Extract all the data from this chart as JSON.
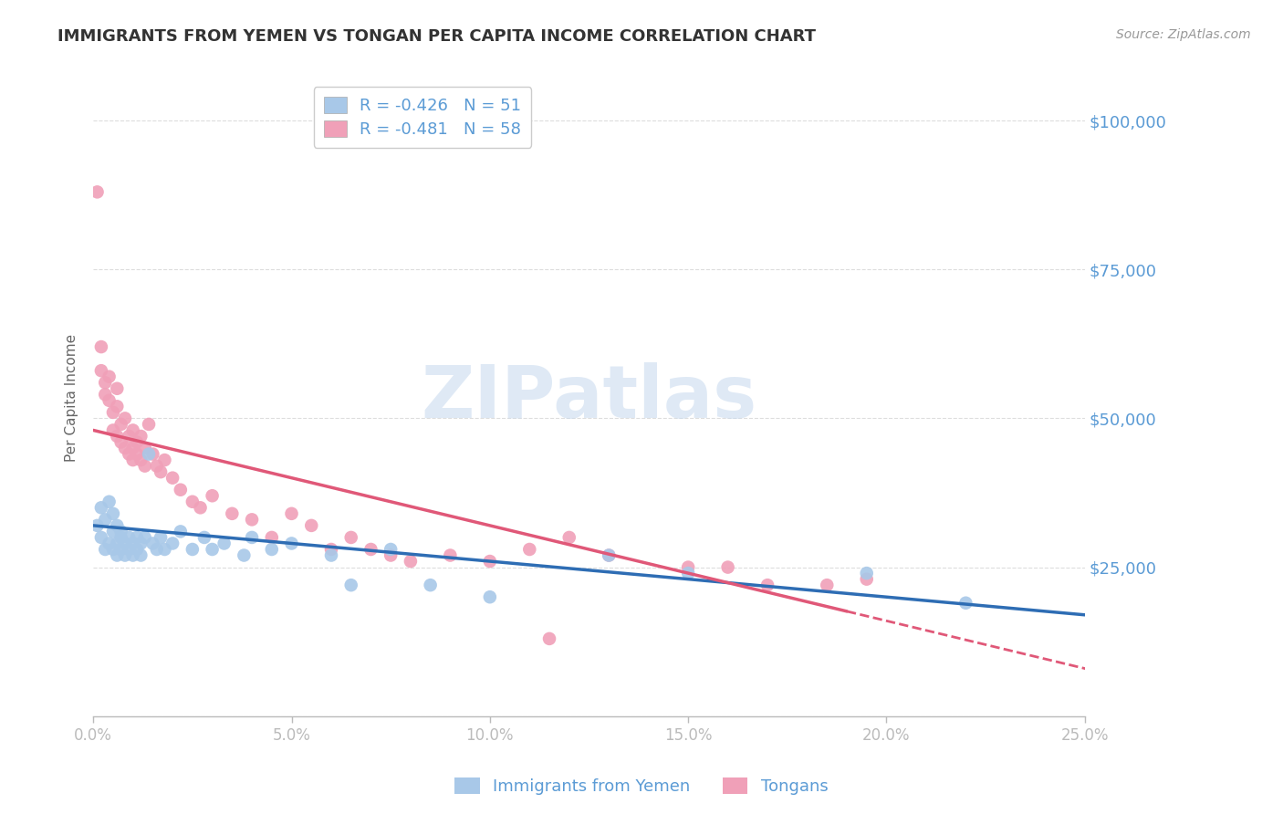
{
  "title": "IMMIGRANTS FROM YEMEN VS TONGAN PER CAPITA INCOME CORRELATION CHART",
  "source": "Source: ZipAtlas.com",
  "ylabel": "Per Capita Income",
  "legend_blue": {
    "R": -0.426,
    "N": 51,
    "label": "Immigrants from Yemen"
  },
  "legend_pink": {
    "R": -0.481,
    "N": 58,
    "label": "Tongans"
  },
  "watermark": "ZIPatlas",
  "ylim": [
    0,
    107000
  ],
  "xlim": [
    0.0,
    0.25
  ],
  "blue_color": "#A8C8E8",
  "pink_color": "#F0A0B8",
  "blue_line_color": "#2E6DB4",
  "pink_line_color": "#E05878",
  "axis_color": "#BBBBBB",
  "grid_color": "#DDDDDD",
  "tick_label_color": "#5B9BD5",
  "title_color": "#333333",
  "yemen_x": [
    0.001,
    0.002,
    0.002,
    0.003,
    0.003,
    0.004,
    0.004,
    0.005,
    0.005,
    0.005,
    0.006,
    0.006,
    0.006,
    0.007,
    0.007,
    0.007,
    0.008,
    0.008,
    0.009,
    0.009,
    0.01,
    0.01,
    0.011,
    0.011,
    0.012,
    0.012,
    0.013,
    0.014,
    0.015,
    0.016,
    0.017,
    0.018,
    0.02,
    0.022,
    0.025,
    0.028,
    0.03,
    0.033,
    0.038,
    0.04,
    0.045,
    0.05,
    0.06,
    0.065,
    0.075,
    0.085,
    0.1,
    0.13,
    0.15,
    0.195,
    0.22
  ],
  "yemen_y": [
    32000,
    35000,
    30000,
    33000,
    28000,
    36000,
    29000,
    31000,
    34000,
    28000,
    29000,
    32000,
    27000,
    31000,
    30000,
    28000,
    29000,
    27000,
    30000,
    28000,
    29000,
    27000,
    30000,
    28000,
    29000,
    27000,
    30000,
    44000,
    29000,
    28000,
    30000,
    28000,
    29000,
    31000,
    28000,
    30000,
    28000,
    29000,
    27000,
    30000,
    28000,
    29000,
    27000,
    22000,
    28000,
    22000,
    20000,
    27000,
    24000,
    24000,
    19000
  ],
  "tongan_x": [
    0.001,
    0.002,
    0.002,
    0.003,
    0.003,
    0.004,
    0.004,
    0.005,
    0.005,
    0.006,
    0.006,
    0.006,
    0.007,
    0.007,
    0.008,
    0.008,
    0.009,
    0.009,
    0.01,
    0.01,
    0.01,
    0.011,
    0.011,
    0.012,
    0.012,
    0.013,
    0.013,
    0.014,
    0.015,
    0.016,
    0.017,
    0.018,
    0.02,
    0.022,
    0.025,
    0.027,
    0.03,
    0.035,
    0.04,
    0.045,
    0.05,
    0.055,
    0.06,
    0.065,
    0.07,
    0.075,
    0.08,
    0.09,
    0.1,
    0.11,
    0.12,
    0.13,
    0.15,
    0.16,
    0.17,
    0.185,
    0.195,
    0.115
  ],
  "tongan_y": [
    88000,
    62000,
    58000,
    56000,
    54000,
    53000,
    57000,
    51000,
    48000,
    52000,
    55000,
    47000,
    49000,
    46000,
    50000,
    45000,
    47000,
    44000,
    48000,
    45000,
    43000,
    46000,
    44000,
    47000,
    43000,
    45000,
    42000,
    49000,
    44000,
    42000,
    41000,
    43000,
    40000,
    38000,
    36000,
    35000,
    37000,
    34000,
    33000,
    30000,
    34000,
    32000,
    28000,
    30000,
    28000,
    27000,
    26000,
    27000,
    26000,
    28000,
    30000,
    27000,
    25000,
    25000,
    22000,
    22000,
    23000,
    13000
  ],
  "blue_intercept": 32000,
  "blue_slope": -60000,
  "pink_intercept": 48000,
  "pink_slope": -160000
}
